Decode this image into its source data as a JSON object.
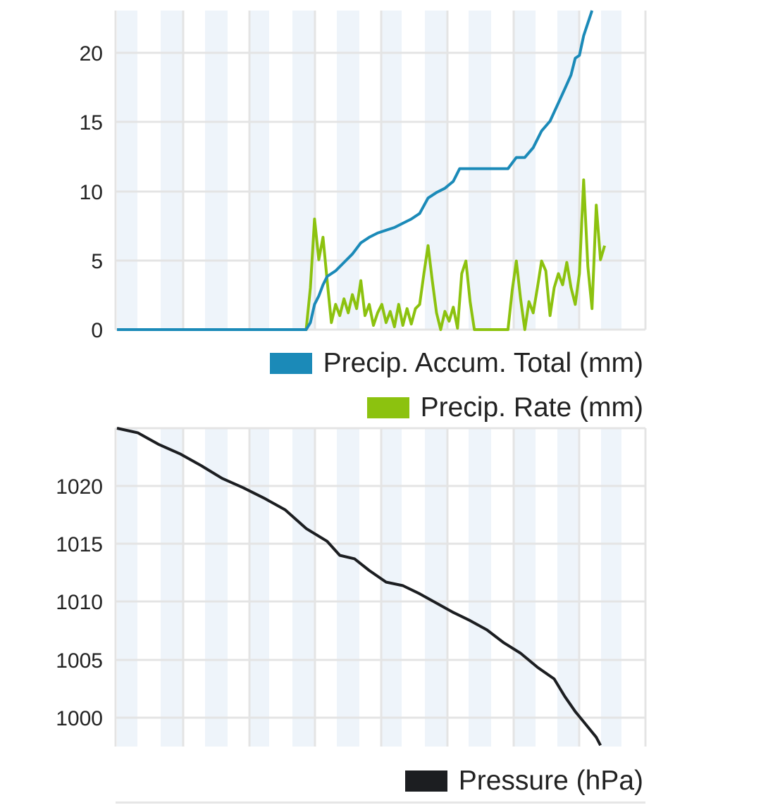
{
  "chart_data": [
    {
      "type": "line",
      "y_ticks": [
        "0",
        "5",
        "10",
        "15",
        "20"
      ],
      "ylim": [
        0,
        22.8
      ],
      "xlim": [
        0,
        24
      ],
      "grid": true,
      "x_tick_labels_visible": false,
      "legend_position": "bottom-right",
      "series": [
        {
          "name": "Precip. Accum. Total (mm)",
          "color": "#1b8ab8",
          "points": [
            [
              0,
              0
            ],
            [
              9,
              0
            ],
            [
              9.2,
              0.5
            ],
            [
              9.4,
              1.8
            ],
            [
              9.6,
              2.4
            ],
            [
              9.8,
              3.2
            ],
            [
              10,
              3.8
            ],
            [
              10.4,
              4.2
            ],
            [
              10.8,
              4.8
            ],
            [
              11.2,
              5.4
            ],
            [
              11.6,
              6.2
            ],
            [
              12,
              6.6
            ],
            [
              12.4,
              6.9
            ],
            [
              12.8,
              7.1
            ],
            [
              13.2,
              7.3
            ],
            [
              13.6,
              7.6
            ],
            [
              14,
              7.9
            ],
            [
              14.4,
              8.3
            ],
            [
              14.8,
              9.4
            ],
            [
              15.2,
              9.8
            ],
            [
              15.6,
              10.1
            ],
            [
              16,
              10.6
            ],
            [
              16.3,
              11.5
            ],
            [
              18.6,
              11.5
            ],
            [
              19,
              12.3
            ],
            [
              19.4,
              12.3
            ],
            [
              19.8,
              13
            ],
            [
              20.2,
              14.2
            ],
            [
              20.6,
              14.9
            ],
            [
              21,
              16.2
            ],
            [
              21.3,
              17.2
            ],
            [
              21.6,
              18.2
            ],
            [
              21.8,
              19.4
            ],
            [
              22,
              19.6
            ],
            [
              22.2,
              21
            ],
            [
              22.6,
              22.8
            ]
          ]
        },
        {
          "name": "Precip. Rate (mm)",
          "color": "#8cc20f",
          "points": [
            [
              0,
              0
            ],
            [
              9,
              0
            ],
            [
              9.2,
              3
            ],
            [
              9.4,
              7.9
            ],
            [
              9.6,
              5
            ],
            [
              9.8,
              6.6
            ],
            [
              10,
              3.5
            ],
            [
              10.2,
              0.5
            ],
            [
              10.4,
              1.8
            ],
            [
              10.6,
              1
            ],
            [
              10.8,
              2.2
            ],
            [
              11,
              1.2
            ],
            [
              11.2,
              2.5
            ],
            [
              11.4,
              1.5
            ],
            [
              11.6,
              3.5
            ],
            [
              11.8,
              1
            ],
            [
              12,
              1.8
            ],
            [
              12.2,
              0.3
            ],
            [
              12.4,
              1.2
            ],
            [
              12.6,
              1.8
            ],
            [
              12.8,
              0.5
            ],
            [
              13,
              1.3
            ],
            [
              13.2,
              0.2
            ],
            [
              13.4,
              1.8
            ],
            [
              13.6,
              0.3
            ],
            [
              13.8,
              1.5
            ],
            [
              14,
              0.4
            ],
            [
              14.2,
              1.5
            ],
            [
              14.4,
              1.8
            ],
            [
              14.6,
              4
            ],
            [
              14.8,
              6
            ],
            [
              15,
              3.5
            ],
            [
              15.2,
              1.2
            ],
            [
              15.4,
              0
            ],
            [
              15.6,
              1.3
            ],
            [
              15.8,
              0.6
            ],
            [
              16,
              1.6
            ],
            [
              16.2,
              0.1
            ],
            [
              16.4,
              4
            ],
            [
              16.6,
              4.9
            ],
            [
              16.8,
              2
            ],
            [
              17,
              0
            ],
            [
              18.6,
              0
            ],
            [
              18.8,
              2.8
            ],
            [
              19,
              4.9
            ],
            [
              19.2,
              2.2
            ],
            [
              19.4,
              0
            ],
            [
              19.6,
              2
            ],
            [
              19.8,
              1.2
            ],
            [
              20,
              3
            ],
            [
              20.2,
              4.9
            ],
            [
              20.4,
              4.2
            ],
            [
              20.6,
              1
            ],
            [
              20.8,
              3
            ],
            [
              21,
              4
            ],
            [
              21.2,
              3.2
            ],
            [
              21.4,
              4.8
            ],
            [
              21.6,
              3
            ],
            [
              21.8,
              1.8
            ],
            [
              22,
              4
            ],
            [
              22.2,
              10.7
            ],
            [
              22.4,
              4.5
            ],
            [
              22.6,
              1.5
            ],
            [
              22.8,
              8.9
            ],
            [
              23,
              5
            ],
            [
              23.2,
              6
            ]
          ]
        }
      ]
    },
    {
      "type": "line",
      "y_ticks": [
        "1000",
        "1005",
        "1010",
        "1015",
        "1020"
      ],
      "ylim": [
        997.5,
        1024.8
      ],
      "xlim": [
        0,
        24
      ],
      "grid": true,
      "x_tick_labels_visible": false,
      "legend_position": "bottom-right",
      "series": [
        {
          "name": "Pressure (hPa)",
          "color": "#1c1e21",
          "points": [
            [
              0,
              1024.8
            ],
            [
              1,
              1024.4
            ],
            [
              2,
              1023.4
            ],
            [
              3,
              1022.6
            ],
            [
              4,
              1021.6
            ],
            [
              5,
              1020.5
            ],
            [
              6,
              1019.7
            ],
            [
              7,
              1018.8
            ],
            [
              8,
              1017.8
            ],
            [
              9,
              1016.2
            ],
            [
              10,
              1015.1
            ],
            [
              10.6,
              1013.9
            ],
            [
              11.3,
              1013.6
            ],
            [
              12,
              1012.6
            ],
            [
              12.8,
              1011.6
            ],
            [
              13.6,
              1011.3
            ],
            [
              14.4,
              1010.6
            ],
            [
              15.2,
              1009.8
            ],
            [
              16,
              1009
            ],
            [
              16.8,
              1008.3
            ],
            [
              17.6,
              1007.5
            ],
            [
              18.4,
              1006.4
            ],
            [
              19.2,
              1005.5
            ],
            [
              20,
              1004.3
            ],
            [
              20.8,
              1003.3
            ],
            [
              21.3,
              1001.8
            ],
            [
              21.8,
              1000.5
            ],
            [
              22.3,
              999.4
            ],
            [
              22.8,
              998.3
            ],
            [
              23,
              997.6
            ]
          ]
        }
      ]
    }
  ]
}
